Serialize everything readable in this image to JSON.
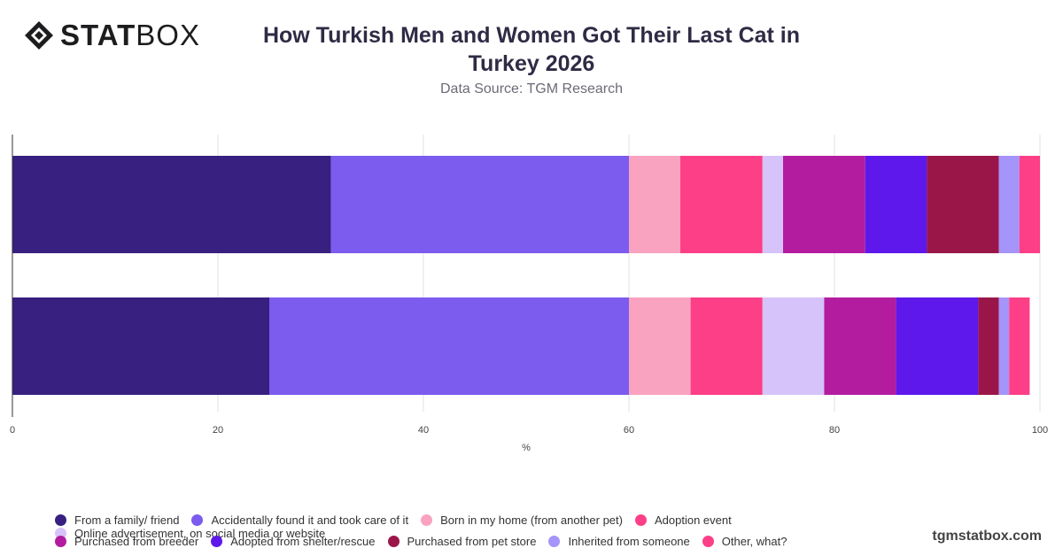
{
  "brand": {
    "logo_bold": "STAT",
    "logo_light": "BOX",
    "watermark": "tgmstatbox.com"
  },
  "header": {
    "title": "How Turkish Men and Women Got Their Last Cat in Turkey 2026",
    "subtitle": "Data Source: TGM Research"
  },
  "chart_data": {
    "type": "bar",
    "orientation": "horizontal",
    "stacked": true,
    "categories": [
      "",
      ""
    ],
    "xlabel": "%",
    "xlim": [
      0,
      100
    ],
    "xticks": [
      0,
      20,
      40,
      60,
      80,
      100
    ],
    "grid": true,
    "legend_position": "bottom",
    "series": [
      {
        "name": "From a family/ friend",
        "color": "#37207f",
        "values": [
          31,
          25
        ]
      },
      {
        "name": "Accidentally found it and took care of it",
        "color": "#7b5cee",
        "values": [
          29,
          35
        ]
      },
      {
        "name": "Born in my home (from another pet)",
        "color": "#f9a3c1",
        "values": [
          5,
          6
        ]
      },
      {
        "name": "Adoption event",
        "color": "#fd3f87",
        "values": [
          8,
          7
        ]
      },
      {
        "name": "Online advertisement, on social media or website",
        "color": "#d6c3f9",
        "values": [
          2,
          6
        ]
      },
      {
        "name": "Purchased from breeder",
        "color": "#b31c9f",
        "values": [
          8,
          7
        ]
      },
      {
        "name": "Adopted from shelter/rescue",
        "color": "#5e18eb",
        "values": [
          6,
          8
        ]
      },
      {
        "name": "Purchased from pet store",
        "color": "#9b1648",
        "values": [
          7,
          2
        ]
      },
      {
        "name": "Inherited from someone",
        "color": "#a594f9",
        "values": [
          2,
          1
        ]
      },
      {
        "name": "Other, what?",
        "color": "#fd3f87",
        "values": [
          2,
          2
        ]
      }
    ]
  }
}
